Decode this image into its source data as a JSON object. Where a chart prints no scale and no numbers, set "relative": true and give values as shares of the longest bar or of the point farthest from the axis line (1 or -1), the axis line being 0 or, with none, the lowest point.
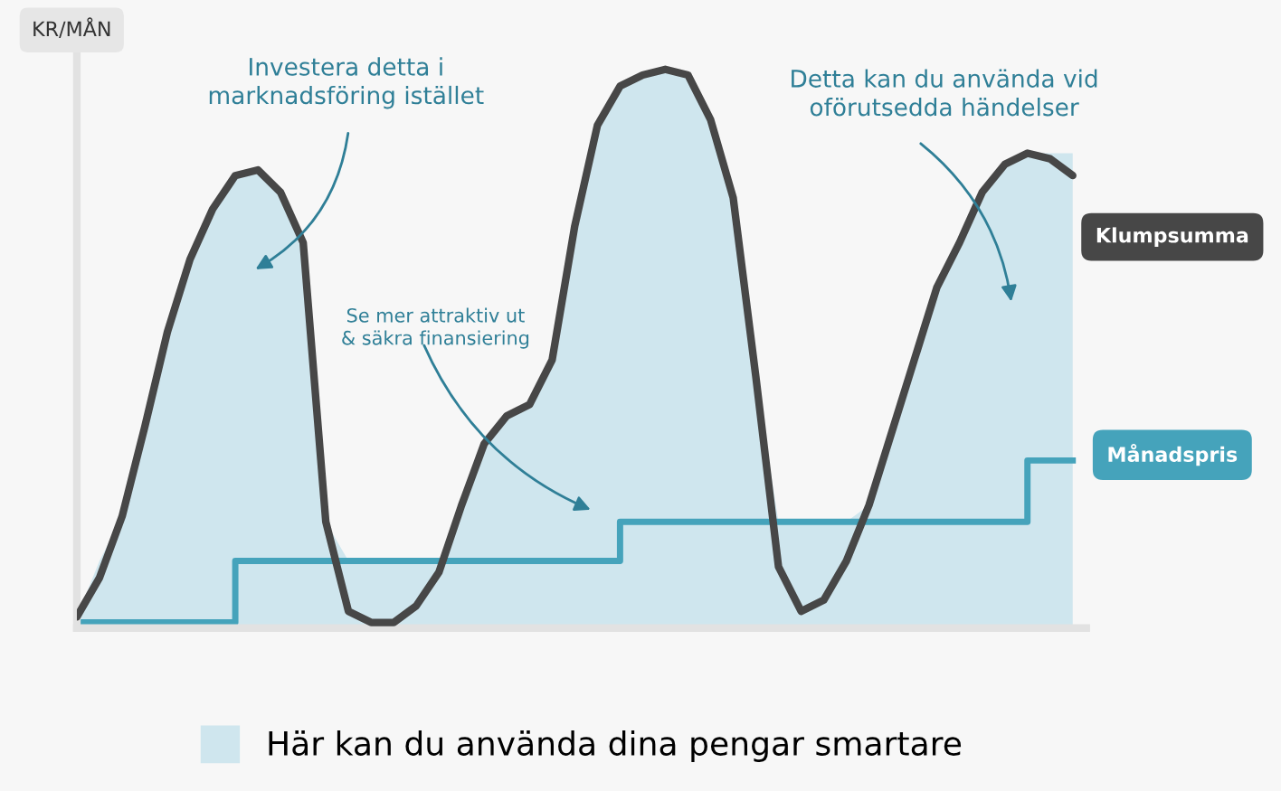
{
  "chart_data": {
    "type": "line",
    "relative": true,
    "ylabel": "KR/MÅN",
    "categories": [
      null,
      null,
      null,
      null,
      null,
      null,
      null,
      null,
      null,
      null,
      null,
      null,
      null,
      null,
      null,
      null,
      null,
      null,
      null,
      null,
      null,
      null,
      null,
      null,
      null,
      null,
      null,
      null,
      null,
      null,
      null,
      null,
      null,
      null,
      null,
      null,
      null,
      null,
      null,
      null,
      null,
      null,
      null,
      null,
      null
    ],
    "series": [
      {
        "name": "Här kan du använda dina pengar smartare",
        "type": "area",
        "color": "#cfe6ee",
        "values": [
          0.02,
          0.12,
          0.2,
          0.36,
          0.53,
          0.66,
          0.75,
          0.81,
          0.82,
          0.78,
          0.69,
          0.19,
          0.12,
          0.12,
          0.12,
          0.12,
          0.12,
          0.22,
          0.33,
          0.38,
          0.4,
          0.48,
          0.72,
          0.9,
          0.97,
          0.99,
          1.0,
          0.99,
          0.91,
          0.77,
          0.45,
          0.19,
          0.19,
          0.19,
          0.19,
          0.22,
          0.35,
          0.48,
          0.61,
          0.69,
          0.78,
          0.83,
          0.85,
          0.85,
          0.85
        ]
      },
      {
        "name": "Klumpsumma",
        "color": "#474747",
        "values": [
          0.02,
          0.09,
          0.2,
          0.36,
          0.53,
          0.66,
          0.75,
          0.81,
          0.82,
          0.78,
          0.69,
          0.19,
          0.03,
          0.01,
          0.01,
          0.04,
          0.1,
          0.22,
          0.33,
          0.38,
          0.4,
          0.48,
          0.72,
          0.9,
          0.97,
          0.99,
          1.0,
          0.99,
          0.91,
          0.77,
          0.45,
          0.11,
          0.03,
          0.05,
          0.12,
          0.22,
          0.35,
          0.48,
          0.61,
          0.69,
          0.78,
          0.83,
          0.85,
          0.84,
          0.81
        ]
      },
      {
        "name": "Månadspris",
        "type": "step",
        "color": "#45a3bb",
        "values": [
          0.01,
          0.01,
          0.01,
          0.01,
          0.01,
          0.01,
          0.01,
          0.12,
          0.12,
          0.12,
          0.12,
          0.12,
          0.12,
          0.12,
          0.12,
          0.12,
          0.12,
          0.12,
          0.12,
          0.12,
          0.12,
          0.12,
          0.12,
          0.12,
          0.19,
          0.19,
          0.19,
          0.19,
          0.19,
          0.19,
          0.19,
          0.19,
          0.19,
          0.19,
          0.19,
          0.19,
          0.19,
          0.19,
          0.19,
          0.19,
          0.19,
          0.19,
          0.3,
          0.3,
          0.3
        ]
      }
    ],
    "annotations": [
      "Investera detta i\nmarknadsföring istället",
      "Se mer attraktiv ut\n& säkra finansiering",
      "Detta kan du använda vid\noförutsedda händelser"
    ],
    "legend": "bottom"
  }
}
